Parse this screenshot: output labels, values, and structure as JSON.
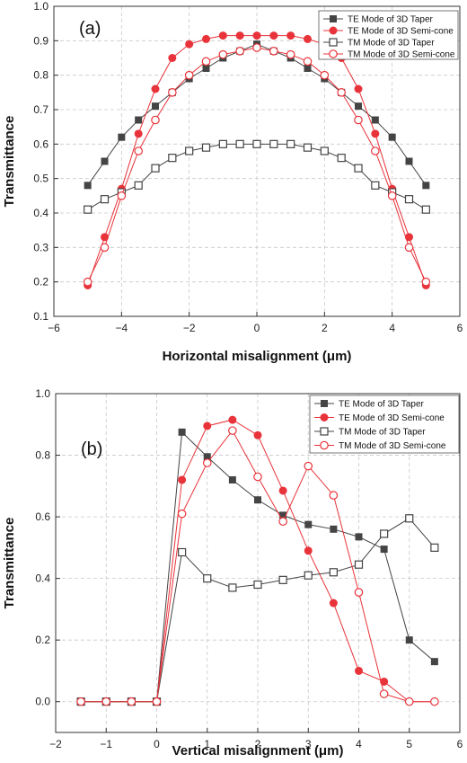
{
  "chart_data": [
    {
      "type": "line",
      "panel_label": "(a)",
      "xlabel": "Horizontal misalignment (μm)",
      "ylabel": "Transmittance",
      "xlim": [
        -6,
        6
      ],
      "ylim": [
        0.1,
        1.0
      ],
      "xticks": [
        -6,
        -4,
        -2,
        0,
        2,
        4,
        6
      ],
      "yticks": [
        0.1,
        0.2,
        0.3,
        0.4,
        0.5,
        0.6,
        0.7,
        0.8,
        0.9,
        1.0
      ],
      "grid": "dashed",
      "legend_position": "top-right",
      "series": [
        {
          "name": "TE Mode of 3D Taper",
          "color": "#444444",
          "marker": "filled-square",
          "x": [
            -5,
            -4.5,
            -4,
            -3.5,
            -3,
            -2.5,
            -2,
            -1.5,
            -1,
            -0.5,
            0,
            0.5,
            1,
            1.5,
            2,
            2.5,
            3,
            3.5,
            4,
            4.5,
            5
          ],
          "y": [
            0.48,
            0.55,
            0.62,
            0.67,
            0.71,
            0.75,
            0.79,
            0.82,
            0.85,
            0.87,
            0.89,
            0.87,
            0.85,
            0.82,
            0.79,
            0.75,
            0.71,
            0.67,
            0.62,
            0.55,
            0.48
          ]
        },
        {
          "name": "TE Mode of 3D Semi-cone",
          "color": "#e8333a",
          "marker": "filled-circle",
          "x": [
            -5,
            -4.5,
            -4,
            -3.5,
            -3,
            -2.5,
            -2,
            -1.5,
            -1,
            -0.5,
            0,
            0.5,
            1,
            1.5,
            2,
            2.5,
            3,
            3.5,
            4,
            4.5,
            5
          ],
          "y": [
            0.19,
            0.33,
            0.47,
            0.63,
            0.76,
            0.85,
            0.89,
            0.905,
            0.915,
            0.915,
            0.915,
            0.915,
            0.915,
            0.905,
            0.89,
            0.85,
            0.76,
            0.63,
            0.47,
            0.33,
            0.19
          ]
        },
        {
          "name": "TM Mode of 3D Taper",
          "color": "#444444",
          "marker": "open-square",
          "x": [
            -5,
            -4.5,
            -4,
            -3.5,
            -3,
            -2.5,
            -2,
            -1.5,
            -1,
            -0.5,
            0,
            0.5,
            1,
            1.5,
            2,
            2.5,
            3,
            3.5,
            4,
            4.5,
            5
          ],
          "y": [
            0.41,
            0.44,
            0.46,
            0.48,
            0.53,
            0.56,
            0.58,
            0.59,
            0.6,
            0.6,
            0.6,
            0.6,
            0.6,
            0.59,
            0.58,
            0.56,
            0.53,
            0.48,
            0.46,
            0.44,
            0.41
          ]
        },
        {
          "name": "TM Mode of 3D Semi-cone",
          "color": "#e8333a",
          "marker": "open-circle",
          "x": [
            -5,
            -4.5,
            -4,
            -3.5,
            -3,
            -2.5,
            -2,
            -1.5,
            -1,
            -0.5,
            0,
            0.5,
            1,
            1.5,
            2,
            2.5,
            3,
            3.5,
            4,
            4.5,
            5
          ],
          "y": [
            0.2,
            0.3,
            0.45,
            0.58,
            0.67,
            0.75,
            0.8,
            0.84,
            0.86,
            0.87,
            0.88,
            0.87,
            0.86,
            0.84,
            0.8,
            0.75,
            0.67,
            0.58,
            0.45,
            0.3,
            0.2
          ]
        }
      ]
    },
    {
      "type": "line",
      "panel_label": "(b)",
      "xlabel": "Vertical misalignment (μm)",
      "ylabel": "Transmittance",
      "xlim": [
        -2,
        6
      ],
      "ylim": [
        -0.1,
        1.0
      ],
      "xticks": [
        -2,
        -1,
        0,
        1,
        2,
        3,
        4,
        5,
        6
      ],
      "yticks": [
        0.0,
        0.2,
        0.4,
        0.6,
        0.8,
        1.0
      ],
      "grid": "dashed",
      "legend_position": "top-right",
      "series": [
        {
          "name": "TE Mode of 3D Taper",
          "color": "#444444",
          "marker": "filled-square",
          "x": [
            -1.5,
            -1,
            -0.5,
            0,
            0.5,
            1,
            1.5,
            2,
            2.5,
            3,
            3.5,
            4,
            4.5,
            5,
            5.5
          ],
          "y": [
            0.0,
            0.0,
            0.0,
            0.0,
            0.875,
            0.795,
            0.72,
            0.655,
            0.605,
            0.575,
            0.56,
            0.535,
            0.495,
            0.2,
            0.13
          ]
        },
        {
          "name": "TE Mode of 3D Semi-cone",
          "color": "#e8333a",
          "marker": "filled-circle",
          "x": [
            -1.5,
            -1,
            -0.5,
            0,
            0.5,
            1,
            1.5,
            2,
            2.5,
            3,
            3.5,
            4,
            4.5,
            5,
            5.5
          ],
          "y": [
            0.0,
            0.0,
            0.0,
            0.0,
            0.72,
            0.895,
            0.915,
            0.865,
            0.685,
            0.49,
            0.32,
            0.1,
            0.065,
            0.0,
            0.0
          ]
        },
        {
          "name": "TM Mode of 3D Taper",
          "color": "#444444",
          "marker": "open-square",
          "x": [
            -1.5,
            -1,
            -0.5,
            0,
            0.5,
            1,
            1.5,
            2,
            2.5,
            3,
            3.5,
            4,
            4.5,
            5,
            5.5
          ],
          "y": [
            0.0,
            0.0,
            0.0,
            0.0,
            0.485,
            0.4,
            0.37,
            0.38,
            0.395,
            0.41,
            0.42,
            0.445,
            0.545,
            0.595,
            0.5
          ]
        },
        {
          "name": "TM Mode of 3D Semi-cone",
          "color": "#e8333a",
          "marker": "open-circle",
          "x": [
            -1.5,
            -1,
            -0.5,
            0,
            0.5,
            1,
            1.5,
            2,
            2.5,
            3,
            3.5,
            4,
            4.5,
            5,
            5.5
          ],
          "y": [
            0.0,
            0.0,
            0.0,
            0.0,
            0.61,
            0.775,
            0.88,
            0.73,
            0.585,
            0.765,
            0.67,
            0.355,
            0.025,
            0.0,
            0.0
          ]
        }
      ]
    }
  ]
}
